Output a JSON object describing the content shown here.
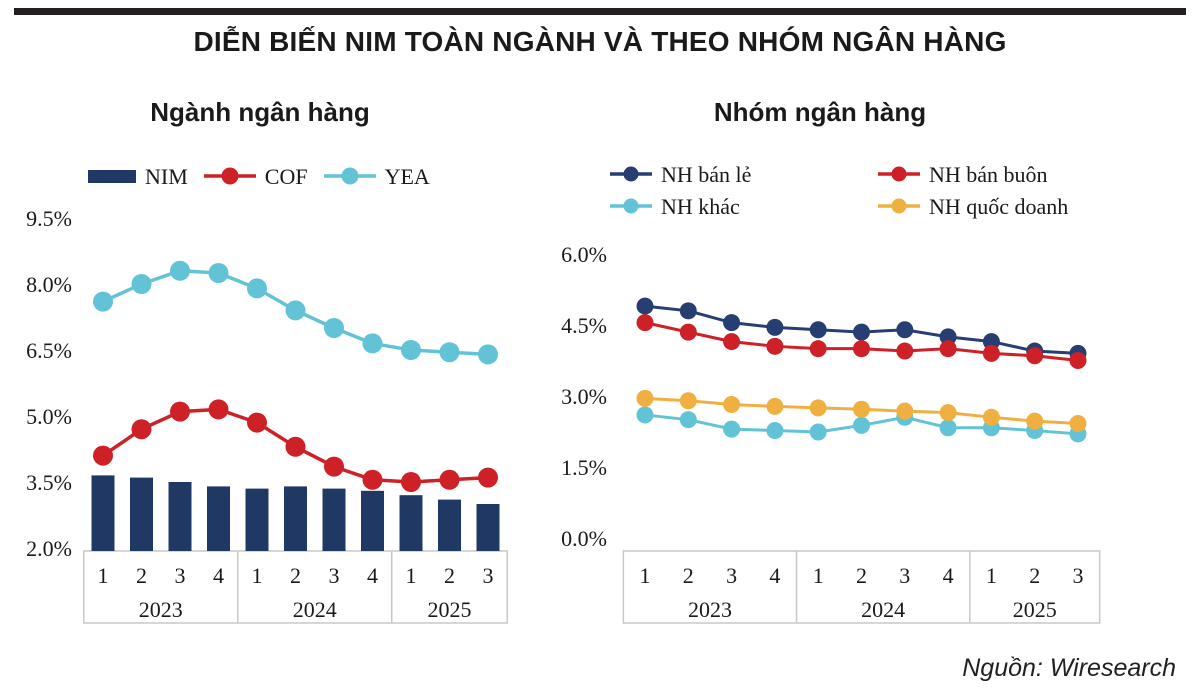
{
  "page": {
    "title": "DIỄN BIẾN NIM TOÀN NGÀNH VÀ THEO NHÓM NGÂN HÀNG",
    "source": "Nguồn: Wiresearch"
  },
  "colors": {
    "ink": "#1a1a1a",
    "top_rule": "#231f20",
    "axis_box_border": "#c9c9c9",
    "navy_bar": "#1f3864",
    "navy_line": "#263e72",
    "red": "#cd2127",
    "cyan": "#62c3d6",
    "yellow": "#efb041"
  },
  "chart_data": [
    {
      "id": "nganh",
      "type": "bar+line",
      "title": "Ngành ngân hàng",
      "categories": [
        "1",
        "2",
        "3",
        "4",
        "1",
        "2",
        "3",
        "4",
        "1",
        "2",
        "3"
      ],
      "year_groups": [
        {
          "label": "2023",
          "span": 4
        },
        {
          "label": "2024",
          "span": 4
        },
        {
          "label": "2025",
          "span": 3
        }
      ],
      "ylim": [
        2.0,
        9.5
      ],
      "yticks": [
        "9.5%",
        "8.0%",
        "6.5%",
        "5.0%",
        "3.5%",
        "2.0%"
      ],
      "grid": false,
      "legend_position": "top",
      "series": [
        {
          "id": "nim",
          "name": "NIM",
          "type": "bar",
          "color": "#1f3864",
          "values": [
            3.65,
            3.6,
            3.5,
            3.4,
            3.35,
            3.4,
            3.35,
            3.3,
            3.2,
            3.1,
            3.0
          ]
        },
        {
          "id": "cof",
          "name": "COF",
          "type": "line",
          "color": "#cd2127",
          "values": [
            4.1,
            4.7,
            5.1,
            5.15,
            4.85,
            4.3,
            3.85,
            3.55,
            3.5,
            3.55,
            3.6
          ]
        },
        {
          "id": "yea",
          "name": "YEA",
          "type": "line",
          "color": "#62c3d6",
          "values": [
            7.6,
            8.0,
            8.3,
            8.25,
            7.9,
            7.4,
            7.0,
            6.65,
            6.5,
            6.45,
            6.4
          ]
        }
      ]
    },
    {
      "id": "nhom",
      "type": "line",
      "title": "Nhóm ngân hàng",
      "categories": [
        "1",
        "2",
        "3",
        "4",
        "1",
        "2",
        "3",
        "4",
        "1",
        "2",
        "3"
      ],
      "year_groups": [
        {
          "label": "2023",
          "span": 4
        },
        {
          "label": "2024",
          "span": 4
        },
        {
          "label": "2025",
          "span": 3
        }
      ],
      "ylim": [
        0.0,
        6.0
      ],
      "yticks": [
        "6.0%",
        "4.5%",
        "3.0%",
        "1.5%",
        "0.0%"
      ],
      "grid": false,
      "legend_position": "top",
      "series": [
        {
          "id": "nh-ban-le",
          "name": "NH bán lẻ",
          "type": "line",
          "color": "#263e72",
          "values": [
            4.9,
            4.8,
            4.55,
            4.45,
            4.4,
            4.35,
            4.4,
            4.25,
            4.15,
            3.95,
            3.9
          ]
        },
        {
          "id": "nh-ban-buon",
          "name": "NH bán buôn",
          "type": "line",
          "color": "#cd2127",
          "values": [
            4.55,
            4.35,
            4.15,
            4.05,
            4.0,
            4.0,
            3.95,
            4.0,
            3.9,
            3.85,
            3.75
          ]
        },
        {
          "id": "nh-khac",
          "name": "NH khác",
          "type": "line",
          "color": "#62c3d6",
          "values": [
            2.6,
            2.5,
            2.3,
            2.27,
            2.24,
            2.38,
            2.55,
            2.33,
            2.33,
            2.27,
            2.2
          ]
        },
        {
          "id": "nh-quoc-doanh",
          "name": "NH quốc doanh",
          "type": "line",
          "color": "#efb041",
          "values": [
            2.95,
            2.9,
            2.82,
            2.78,
            2.75,
            2.72,
            2.68,
            2.65,
            2.55,
            2.47,
            2.42
          ]
        }
      ]
    }
  ]
}
